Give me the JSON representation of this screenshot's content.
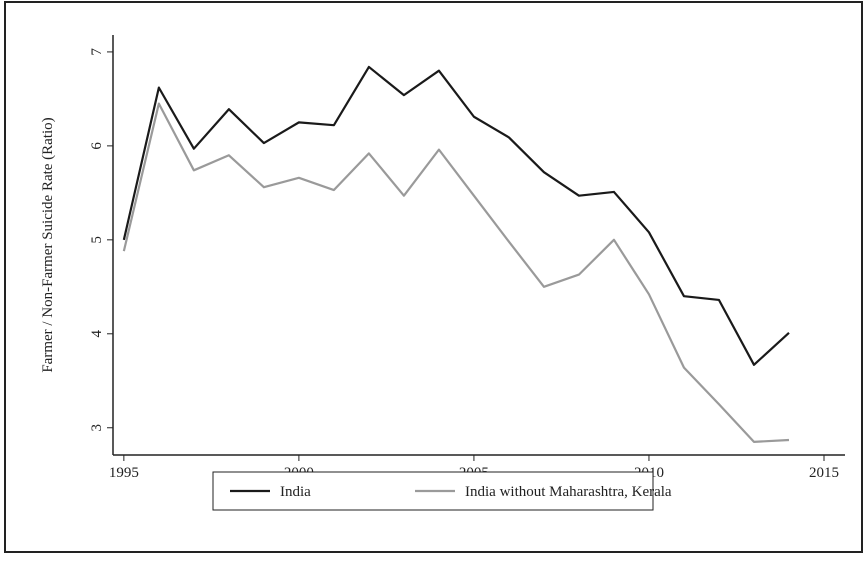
{
  "chart_data": {
    "type": "line",
    "y_label": "Farmer / Non-Farmer Suicide Rate (Ratio)",
    "x": [
      1995,
      1996,
      1997,
      1998,
      1999,
      2000,
      2001,
      2002,
      2003,
      2004,
      2005,
      2006,
      2007,
      2008,
      2009,
      2010,
      2011,
      2012,
      2013,
      2014
    ],
    "series": [
      {
        "name": "India",
        "color": "#1a1a1a",
        "values": [
          5.0,
          6.62,
          5.97,
          6.39,
          6.03,
          6.25,
          6.22,
          6.84,
          6.54,
          6.8,
          6.31,
          6.09,
          5.72,
          5.47,
          5.51,
          5.08,
          4.4,
          4.36,
          3.67,
          4.01
        ]
      },
      {
        "name": "India without Maharashtra, Kerala",
        "color": "#9a9a9a",
        "values": [
          4.88,
          6.45,
          5.74,
          5.9,
          5.56,
          5.66,
          5.53,
          5.92,
          5.47,
          5.96,
          5.47,
          4.98,
          4.5,
          4.63,
          5.0,
          4.42,
          3.64,
          3.25,
          2.85,
          2.87
        ]
      }
    ],
    "xlim": [
      1994.69,
      2015.6
    ],
    "xticks": [
      1995,
      2000,
      2005,
      2010,
      2015
    ],
    "ylim": [
      2.71,
      7.18
    ],
    "yticks": [
      3,
      4,
      5,
      6,
      7
    ]
  }
}
